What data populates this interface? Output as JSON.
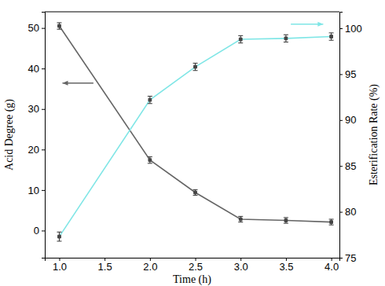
{
  "chart_data": {
    "type": "line",
    "x_label": "Time (h)",
    "y_label": "Acid Degree (g)",
    "y2_label": "Esterification Rate (%)",
    "x": [
      1.0,
      2.0,
      2.5,
      3.0,
      3.5,
      4.0
    ],
    "xlim": [
      0.84,
      4.09
    ],
    "xticks": [
      {
        "value": 1,
        "label": "1.0"
      },
      1.5,
      {
        "value": 2,
        "label": "2.0"
      },
      2.5,
      {
        "value": 3,
        "label": "3.0"
      },
      3.5,
      {
        "value": 4,
        "label": "4.0"
      }
    ],
    "ylim": [
      -6.7,
      54
    ],
    "yticks": [
      0,
      10,
      20,
      30,
      40,
      50
    ],
    "y2lim": [
      75,
      101.8
    ],
    "y2ticks": [
      75,
      80,
      85,
      90,
      95,
      100
    ],
    "grid": false,
    "series": [
      {
        "color": "#666666",
        "marker": "square",
        "values": [
          50.5,
          17.4,
          9.4,
          2.8,
          2.5,
          2.1
        ],
        "errors": [
          0.8,
          0.8,
          0.7,
          0.7,
          0.7,
          0.7
        ]
      },
      {
        "color": "#7fe6e6",
        "marker": "square",
        "axis": "y2",
        "values": [
          77.3,
          92.2,
          95.8,
          98.8,
          98.9,
          99.1
        ],
        "errors": [
          0.5,
          0.4,
          0.4,
          0.4,
          0.4,
          0.4
        ]
      }
    ]
  }
}
